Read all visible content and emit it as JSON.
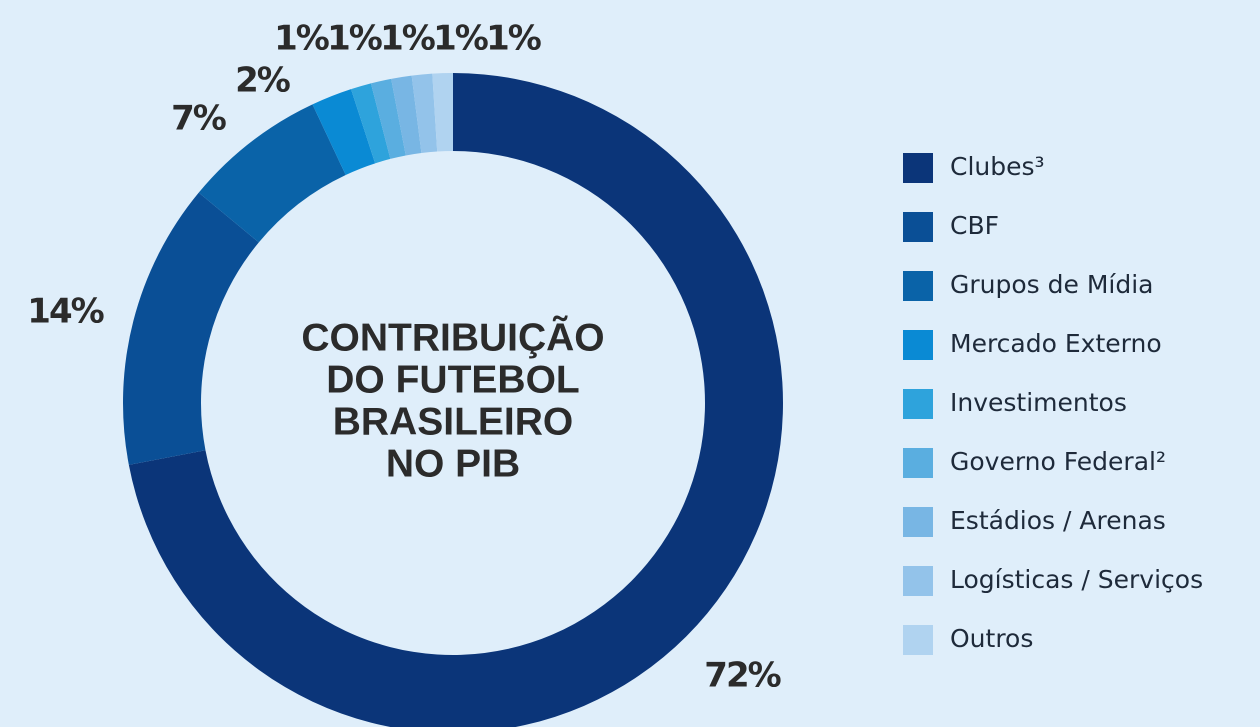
{
  "chart_data": {
    "type": "donut",
    "title": [
      "CONTRIBUIÇÃO",
      "DO FUTEBOL",
      "BRASILEIRO",
      "NO PIB"
    ],
    "categories": [
      "Clubes³",
      "CBF",
      "Grupos de Mídia",
      "Mercado Externo",
      "Investimentos",
      "Governo Federal²",
      "Estádios / Arenas",
      "Logísticas / Serviços",
      "Outros"
    ],
    "values": [
      72,
      14,
      7,
      2,
      1,
      1,
      1,
      1,
      1
    ],
    "value_labels": [
      "72%",
      "14%",
      "7%",
      "2%",
      "1%",
      "1%",
      "1%",
      "1%",
      "1%"
    ],
    "colors": [
      "#0b3579",
      "#0a4f96",
      "#0a63a8",
      "#0a8ad4",
      "#2ea3dc",
      "#5aaee0",
      "#78b6e4",
      "#93c3ea",
      "#b0d3f0"
    ],
    "legend": "right"
  }
}
